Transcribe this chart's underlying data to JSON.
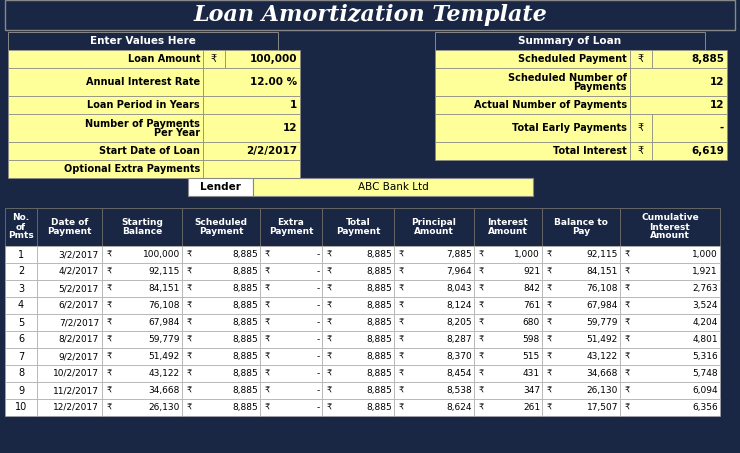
{
  "title": "Loan Amortization Template",
  "bg_color": "#1a2744",
  "title_bg": "#1a2744",
  "title_color": "#ffffff",
  "label_bg": "#ffff99",
  "section_header_bg": "#1a2744",
  "section_header_color": "#ffffff",
  "value_bg": "#ffff99",
  "table_header_bg": "#1a2744",
  "table_header_fg": "#ffffff",
  "col_headers": [
    "No.\nof\nPmts",
    "Date of\nPayment",
    "Starting\nBalance",
    "Scheduled\nPayment",
    "Extra\nPayment",
    "Total\nPayment",
    "Principal\nAmount",
    "Interest\nAmount",
    "Balance to\nPay",
    "Cumulative\nInterest\nAmount"
  ],
  "table_data": [
    [
      "1",
      "3/2/2017",
      "100,000",
      "8,885",
      "-",
      "8,885",
      "7,885",
      "1,000",
      "92,115",
      "1,000"
    ],
    [
      "2",
      "4/2/2017",
      "92,115",
      "8,885",
      "-",
      "8,885",
      "7,964",
      "921",
      "84,151",
      "1,921"
    ],
    [
      "3",
      "5/2/2017",
      "84,151",
      "8,885",
      "-",
      "8,885",
      "8,043",
      "842",
      "76,108",
      "2,763"
    ],
    [
      "4",
      "6/2/2017",
      "76,108",
      "8,885",
      "-",
      "8,885",
      "8,124",
      "761",
      "67,984",
      "3,524"
    ],
    [
      "5",
      "7/2/2017",
      "67,984",
      "8,885",
      "-",
      "8,885",
      "8,205",
      "680",
      "59,779",
      "4,204"
    ],
    [
      "6",
      "8/2/2017",
      "59,779",
      "8,885",
      "-",
      "8,885",
      "8,287",
      "598",
      "51,492",
      "4,801"
    ],
    [
      "7",
      "9/2/2017",
      "51,492",
      "8,885",
      "-",
      "8,885",
      "8,370",
      "515",
      "43,122",
      "5,316"
    ],
    [
      "8",
      "10/2/2017",
      "43,122",
      "8,885",
      "-",
      "8,885",
      "8,454",
      "431",
      "34,668",
      "5,748"
    ],
    [
      "9",
      "11/2/2017",
      "34,668",
      "8,885",
      "-",
      "8,885",
      "8,538",
      "347",
      "26,130",
      "6,094"
    ],
    [
      "10",
      "12/2/2017",
      "26,130",
      "8,885",
      "-",
      "8,885",
      "8,624",
      "261",
      "17,507",
      "6,356"
    ]
  ]
}
